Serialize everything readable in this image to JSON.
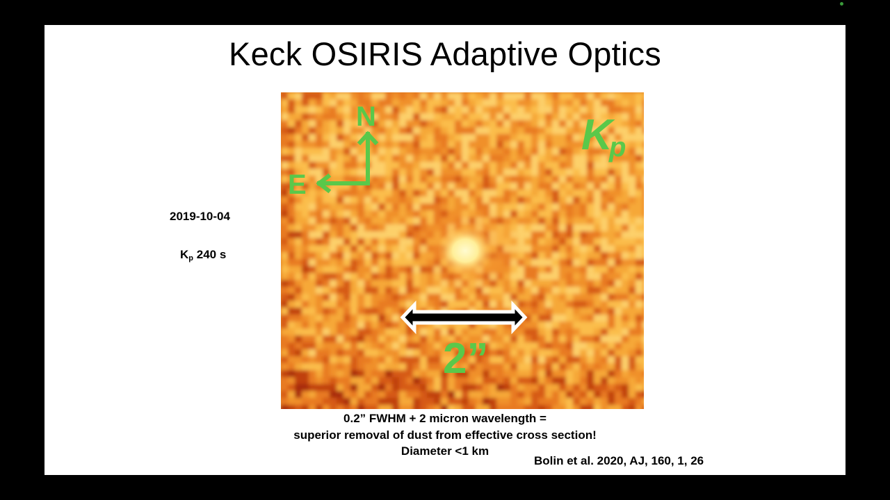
{
  "slide": {
    "title": "Keck OSIRIS Adaptive Optics",
    "date": "2019-10-04",
    "exposure": {
      "band": "K",
      "band_sub": "p",
      "duration": " 240 s"
    },
    "image": {
      "compass_north": "N",
      "compass_east": "E",
      "filter_label": "K",
      "filter_sub": "p",
      "scale_bar_label": "2”"
    },
    "caption": {
      "line1": "0.2” FWHM + 2 micron wavelength =",
      "line2": "superior removal of dust from effective cross section!",
      "line3": "Diameter <1 km"
    },
    "reference": "Bolin et al. 2020, AJ, 160, 1, 26"
  },
  "colors": {
    "overlay_green": "#5ac84a",
    "image_bright": "#fff6b0",
    "image_dark": "#8a1a08"
  }
}
